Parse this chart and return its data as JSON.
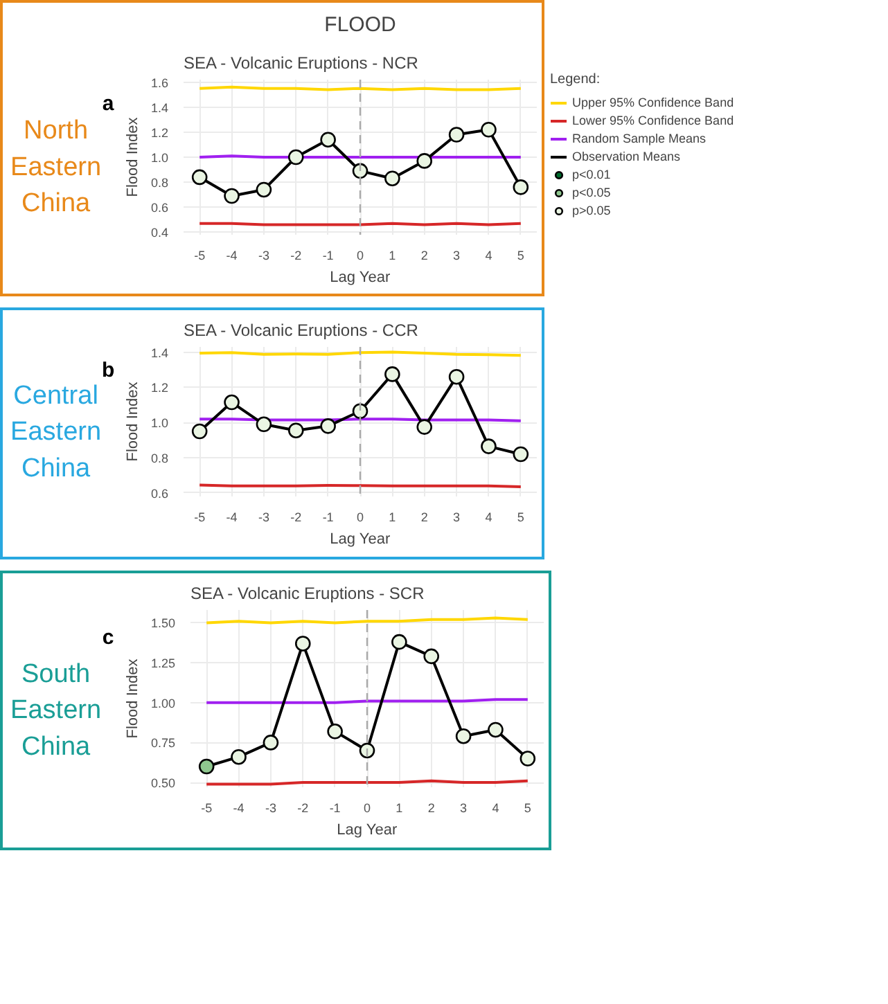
{
  "chart_data": [
    {
      "type": "line",
      "title": "SEA - Volcanic Eruptions - NCR",
      "subtitle": "North Eastern China",
      "annotations": [
        "FLOOD",
        "a"
      ],
      "xlabel": "Lag Year",
      "ylabel": "Flood Index",
      "legend": "right",
      "legend_title": "Legend:",
      "grid": true,
      "xlim": [
        -5.5,
        5.5
      ],
      "xticks": [
        -5,
        -4,
        -3,
        -2,
        -1,
        0,
        1,
        2,
        3,
        4,
        5
      ],
      "ylim": [
        0.38,
        1.62
      ],
      "yticks": [
        {
          "value": 0.4,
          "label": "0.4"
        },
        {
          "value": 0.6,
          "label": "0.6"
        },
        {
          "value": 0.8,
          "label": "0.8"
        },
        {
          "value": 1.0,
          "label": "1.0"
        },
        {
          "value": 1.2,
          "label": "1.2"
        },
        {
          "value": 1.4,
          "label": "1.4"
        },
        {
          "value": 1.6,
          "label": "1.6"
        }
      ],
      "ref_lines": [
        {
          "axis": "x",
          "value": 0,
          "color": "#aaaaaa",
          "line_style": "dashed"
        }
      ],
      "series": [
        {
          "name": "Upper 95% Confidence Band",
          "color": "#ffd700",
          "x": [
            -5,
            -4,
            -3,
            -2,
            -1,
            0,
            1,
            2,
            3,
            4,
            5
          ],
          "values": [
            1.55,
            1.56,
            1.55,
            1.55,
            1.54,
            1.55,
            1.54,
            1.55,
            1.54,
            1.54,
            1.55
          ]
        },
        {
          "name": "Lower 95% Confidence Band",
          "color": "#d62728",
          "x": [
            -5,
            -4,
            -3,
            -2,
            -1,
            0,
            1,
            2,
            3,
            4,
            5
          ],
          "values": [
            0.47,
            0.47,
            0.46,
            0.46,
            0.46,
            0.46,
            0.47,
            0.46,
            0.47,
            0.46,
            0.47
          ]
        },
        {
          "name": "Random Sample Means",
          "color": "#a020f0",
          "x": [
            -5,
            -4,
            -3,
            -2,
            -1,
            0,
            1,
            2,
            3,
            4,
            5
          ],
          "values": [
            1.0,
            1.01,
            1.0,
            1.0,
            1.0,
            1.0,
            1.0,
            1.0,
            1.0,
            1.0,
            1.0
          ]
        },
        {
          "name": "Observation Means",
          "color": "#000000",
          "marker": "circle",
          "x": [
            -5,
            -4,
            -3,
            -2,
            -1,
            0,
            1,
            2,
            3,
            4,
            5
          ],
          "values": [
            0.84,
            0.69,
            0.74,
            1.0,
            1.14,
            0.89,
            0.83,
            0.97,
            1.18,
            1.22,
            0.76
          ],
          "colors": [
            "#eaf5e3",
            "#eaf5e3",
            "#eaf5e3",
            "#eaf5e3",
            "#eaf5e3",
            "#eaf5e3",
            "#eaf5e3",
            "#eaf5e3",
            "#eaf5e3",
            "#eaf5e3",
            "#eaf5e3"
          ]
        },
        {
          "type": "scatter",
          "name": "p<0.01",
          "color": "#006b2d",
          "marker": "circle"
        },
        {
          "type": "scatter",
          "name": "p<0.05",
          "color": "#8fc78f",
          "marker": "circle"
        },
        {
          "type": "scatter",
          "name": "p>0.05",
          "color": "#eaf5e3",
          "marker": "circle"
        }
      ]
    },
    {
      "type": "line",
      "title": "SEA - Volcanic Eruptions - CCR",
      "subtitle": "Central Eastern China",
      "annotations": [
        "b"
      ],
      "xlabel": "Lag Year",
      "ylabel": "Flood Index",
      "grid": true,
      "xlim": [
        -5.5,
        5.5
      ],
      "xticks": [
        -5,
        -4,
        -3,
        -2,
        -1,
        0,
        1,
        2,
        3,
        4,
        5
      ],
      "ylim": [
        0.58,
        1.43
      ],
      "yticks": [
        {
          "value": 0.6,
          "label": "0.6"
        },
        {
          "value": 0.8,
          "label": "0.8"
        },
        {
          "value": 1.0,
          "label": "1.0"
        },
        {
          "value": 1.2,
          "label": "1.2"
        },
        {
          "value": 1.4,
          "label": "1.4"
        }
      ],
      "ref_lines": [
        {
          "axis": "x",
          "value": 0,
          "color": "#aaaaaa",
          "line_style": "dashed"
        }
      ],
      "series": [
        {
          "color": "#ffd700",
          "x": [
            -5,
            -4,
            -3,
            -2,
            -1,
            0,
            1,
            2,
            3,
            4,
            5
          ],
          "values": [
            1.395,
            1.398,
            1.388,
            1.39,
            1.388,
            1.398,
            1.4,
            1.395,
            1.388,
            1.386,
            1.382
          ]
        },
        {
          "color": "#d62728",
          "x": [
            -5,
            -4,
            -3,
            -2,
            -1,
            0,
            1,
            2,
            3,
            4,
            5
          ],
          "values": [
            0.645,
            0.64,
            0.64,
            0.64,
            0.643,
            0.642,
            0.64,
            0.64,
            0.64,
            0.64,
            0.635
          ]
        },
        {
          "color": "#a020f0",
          "x": [
            -5,
            -4,
            -3,
            -2,
            -1,
            0,
            1,
            2,
            3,
            4,
            5
          ],
          "values": [
            1.02,
            1.02,
            1.015,
            1.015,
            1.015,
            1.02,
            1.02,
            1.015,
            1.015,
            1.015,
            1.01
          ]
        },
        {
          "color": "#000000",
          "marker": "circle",
          "x": [
            -5,
            -4,
            -3,
            -2,
            -1,
            0,
            1,
            2,
            3,
            4,
            5
          ],
          "values": [
            0.95,
            1.115,
            0.99,
            0.955,
            0.98,
            1.065,
            1.275,
            0.975,
            1.26,
            0.865,
            0.82
          ],
          "colors": [
            "#eaf5e3",
            "#eaf5e3",
            "#eaf5e3",
            "#eaf5e3",
            "#eaf5e3",
            "#eaf5e3",
            "#eaf5e3",
            "#eaf5e3",
            "#eaf5e3",
            "#eaf5e3",
            "#eaf5e3"
          ]
        }
      ]
    },
    {
      "type": "line",
      "title": "SEA - Volcanic Eruptions - SCR",
      "subtitle": "South Eastern China",
      "annotations": [
        "c"
      ],
      "xlabel": "Lag Year",
      "ylabel": "Flood Index",
      "grid": true,
      "xlim": [
        -5.5,
        5.5
      ],
      "xticks": [
        -5,
        -4,
        -3,
        -2,
        -1,
        0,
        1,
        2,
        3,
        4,
        5
      ],
      "ylim": [
        0.47,
        1.58
      ],
      "yticks": [
        {
          "value": 0.5,
          "label": "0.50"
        },
        {
          "value": 0.75,
          "label": "0.75"
        },
        {
          "value": 1.0,
          "label": "1.00"
        },
        {
          "value": 1.25,
          "label": "1.25"
        },
        {
          "value": 1.5,
          "label": "1.50"
        }
      ],
      "ref_lines": [
        {
          "axis": "x",
          "value": 0,
          "color": "#aaaaaa",
          "line_style": "dashed"
        }
      ],
      "series": [
        {
          "color": "#ffd700",
          "x": [
            -5,
            -4,
            -3,
            -2,
            -1,
            0,
            1,
            2,
            3,
            4,
            5
          ],
          "values": [
            1.5,
            1.51,
            1.5,
            1.51,
            1.5,
            1.51,
            1.51,
            1.52,
            1.52,
            1.53,
            1.52
          ]
        },
        {
          "color": "#d62728",
          "x": [
            -5,
            -4,
            -3,
            -2,
            -1,
            0,
            1,
            2,
            3,
            4,
            5
          ],
          "values": [
            0.49,
            0.49,
            0.49,
            0.5,
            0.5,
            0.5,
            0.5,
            0.51,
            0.5,
            0.5,
            0.51
          ]
        },
        {
          "color": "#a020f0",
          "x": [
            -5,
            -4,
            -3,
            -2,
            -1,
            0,
            1,
            2,
            3,
            4,
            5
          ],
          "values": [
            1.0,
            1.0,
            1.0,
            1.0,
            1.0,
            1.01,
            1.01,
            1.01,
            1.01,
            1.02,
            1.02
          ]
        },
        {
          "color": "#000000",
          "marker": "circle",
          "x": [
            -5,
            -4,
            -3,
            -2,
            -1,
            0,
            1,
            2,
            3,
            4,
            5
          ],
          "values": [
            0.6,
            0.66,
            0.75,
            1.37,
            0.82,
            0.7,
            1.38,
            1.29,
            0.79,
            0.83,
            0.65
          ],
          "colors": [
            "#8fc78f",
            "#eaf5e3",
            "#eaf5e3",
            "#eaf5e3",
            "#eaf5e3",
            "#eaf5e3",
            "#eaf5e3",
            "#eaf5e3",
            "#eaf5e3",
            "#eaf5e3",
            "#eaf5e3"
          ]
        }
      ]
    }
  ]
}
